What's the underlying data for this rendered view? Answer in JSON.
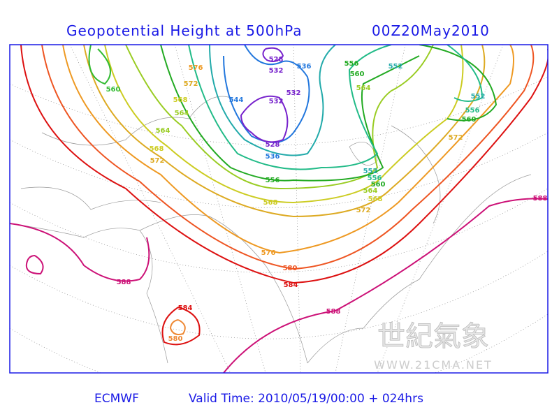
{
  "header": {
    "title": "Geopotential Height at 500hPa",
    "time": "00Z20May2010"
  },
  "map": {
    "contour_labels": [
      "576",
      "572",
      "560",
      "568",
      "564",
      "564",
      "568",
      "572",
      "528",
      "532",
      "536",
      "532",
      "532",
      "544",
      "528",
      "536",
      "556",
      "556",
      "560",
      "552",
      "564",
      "552",
      "556",
      "560",
      "572",
      "552",
      "556",
      "560",
      "564",
      "568",
      "572",
      "568",
      "576",
      "580",
      "584",
      "588",
      "588",
      "588",
      "584",
      "580"
    ]
  },
  "footer": {
    "source": "ECMWF",
    "valid_time": "Valid Time: 2010/05/19/00:00 + 024hrs"
  },
  "watermark": {
    "name": "世紀氣象",
    "url": "WWW.21CMA.NET"
  }
}
